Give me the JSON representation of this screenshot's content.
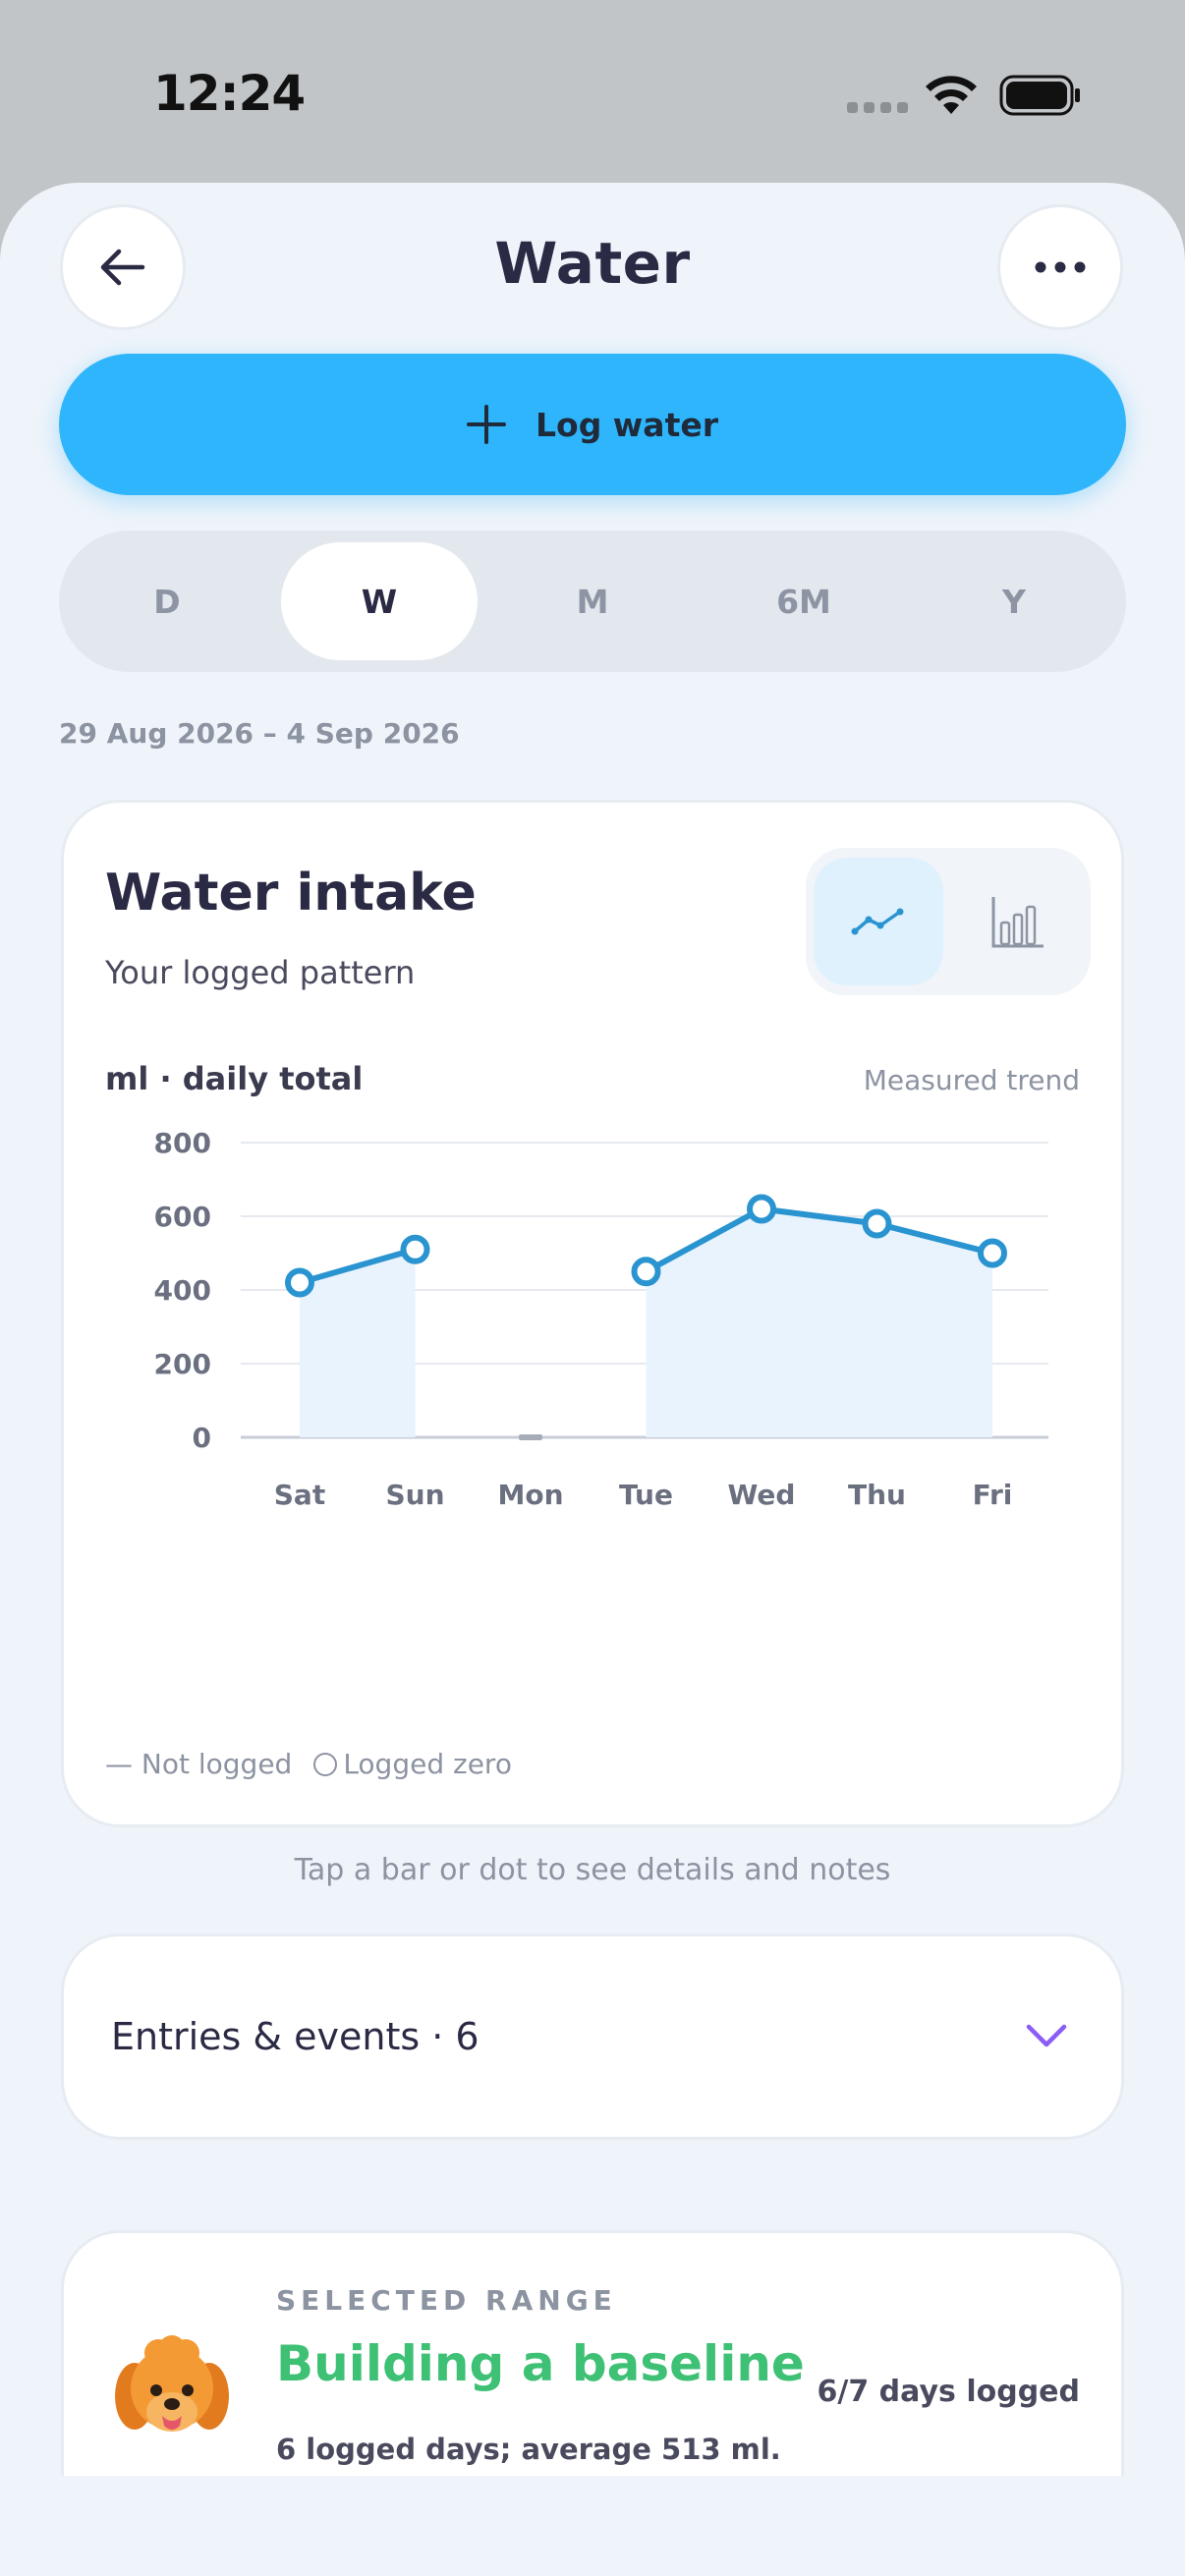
{
  "status": {
    "time": "12:24"
  },
  "header": {
    "title": "Water"
  },
  "actions": {
    "log_water": "Log water"
  },
  "periods": {
    "items": [
      "D",
      "W",
      "M",
      "6M",
      "Y"
    ],
    "selected": "W"
  },
  "date_range": "29 Aug 2026 – 4 Sep 2026",
  "intake_card": {
    "title": "Water intake",
    "subtitle": "Your logged pattern",
    "unit_label": "ml · daily total",
    "trend_label": "Measured trend",
    "legend_not_logged": "— Not logged",
    "legend_logged_zero": "Logged zero"
  },
  "chart_data": {
    "type": "line",
    "categories": [
      "Sat",
      "Sun",
      "Mon",
      "Tue",
      "Wed",
      "Thu",
      "Fri"
    ],
    "series": [
      {
        "values": [
          420,
          510,
          null,
          450,
          620,
          580,
          500
        ]
      }
    ],
    "not_logged": [
      "Mon"
    ],
    "ylim": [
      0,
      800
    ],
    "yticks": [
      0,
      200,
      400,
      600,
      800
    ],
    "grid": true,
    "area_fill": true,
    "colors": {
      "line": "#2a94d0",
      "area": "#e8f3fd",
      "grid": "#e6e9ee",
      "axis": "#c8ced7"
    }
  },
  "hint": "Tap a bar or dot to see details and notes",
  "entries": {
    "label": "Entries & events · 6"
  },
  "selected_range": {
    "kicker": "SELECTED RANGE",
    "title": "Building a baseline",
    "days": "6/7 days logged",
    "description": "6 logged days; average 513 ml."
  },
  "colors": {
    "accent": "#2fb5fb",
    "success": "#3ec175",
    "chevron": "#8b5cf6"
  }
}
